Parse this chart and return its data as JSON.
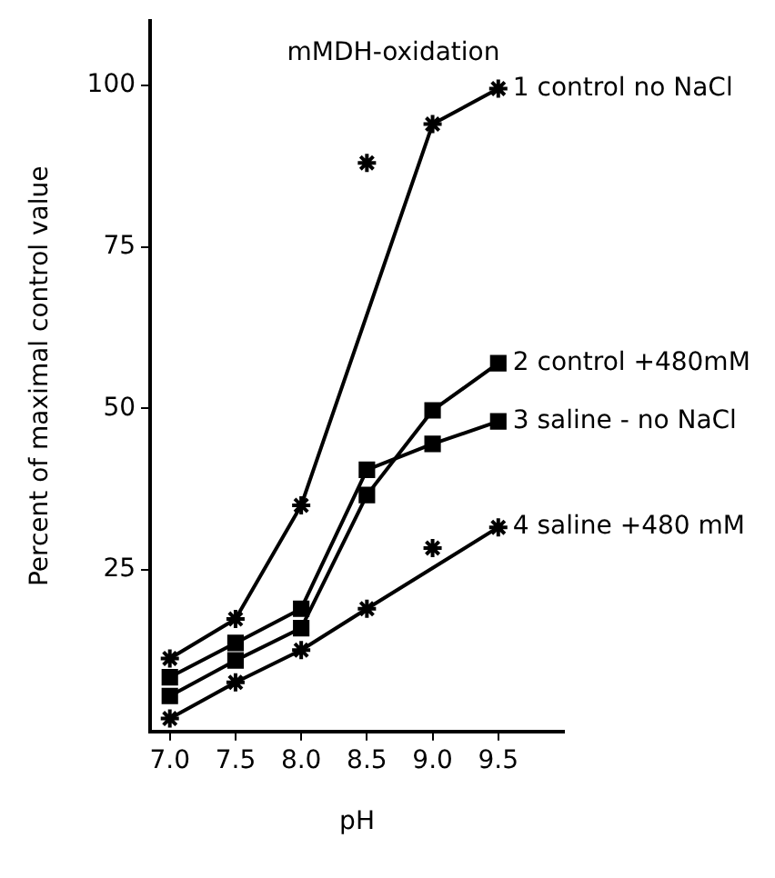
{
  "chart_data": {
    "type": "line",
    "title": "mMDH-oxidation",
    "xlabel": "pH",
    "ylabel": "Percent of maximal control value",
    "x": [
      7.0,
      7.5,
      8.0,
      8.5,
      9.0,
      9.5
    ],
    "xlim": [
      6.85,
      10.0
    ],
    "xticks": [
      {
        "value": 7.0,
        "label": "7.0"
      },
      {
        "value": 7.5,
        "label": "7.5"
      },
      {
        "value": 8.0,
        "label": "8.0"
      },
      {
        "value": 8.5,
        "label": "8.5"
      },
      {
        "value": 9.0,
        "label": "9.0"
      },
      {
        "value": 9.5,
        "label": "9.5"
      }
    ],
    "ylim": [
      0,
      110
    ],
    "yticks": [
      25,
      50,
      75,
      100
    ],
    "grid": false,
    "legend": false,
    "series": [
      {
        "name": "1 control no NaCl",
        "color": "#000000",
        "marker": "cross",
        "values": [
          11.3,
          17.4,
          35,
          null,
          94,
          99.5
        ]
      },
      {
        "name": "2 control +480mM",
        "color": "#000000",
        "marker": "square",
        "values": [
          5.5,
          11,
          16,
          36.6,
          49.7,
          57
        ]
      },
      {
        "name": "3 saline - no NaCl",
        "color": "#000000",
        "marker": "square",
        "values": [
          8.4,
          13.7,
          19,
          40.5,
          44.5,
          48
        ]
      },
      {
        "name": "4 saline +480 mM",
        "color": "#000000",
        "marker": "cross",
        "values": [
          2,
          7.6,
          12.6,
          19,
          null,
          31.6
        ]
      },
      {
        "type": "scatter",
        "color": "#000000",
        "marker": "cross",
        "x": [
          8.5
        ],
        "values": [
          88
        ]
      },
      {
        "type": "scatter",
        "color": "#000000",
        "marker": "cross",
        "x": [
          9.0
        ],
        "values": [
          28.4
        ]
      }
    ]
  }
}
